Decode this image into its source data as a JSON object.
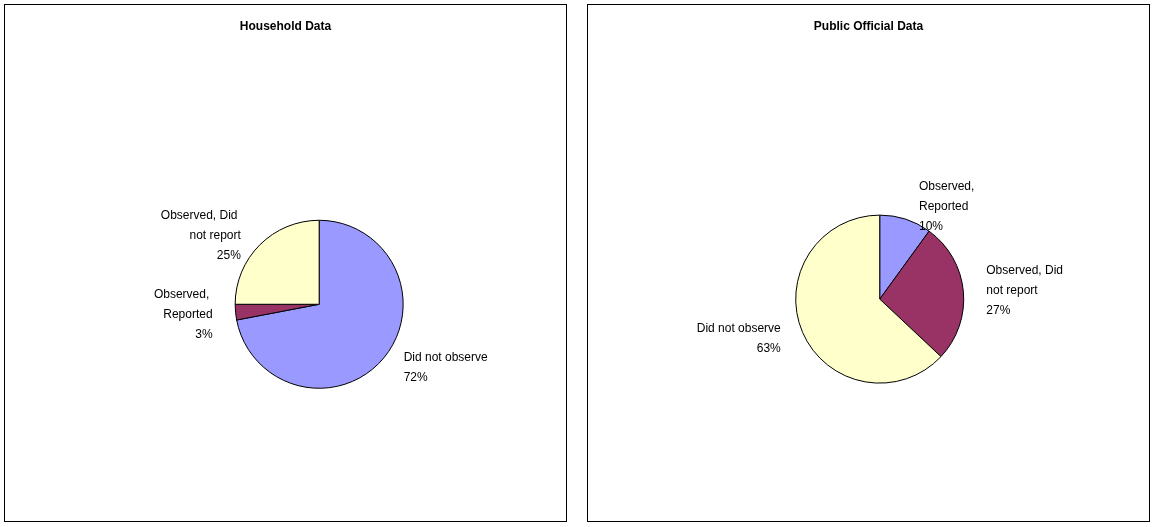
{
  "chart_data": [
    {
      "type": "pie",
      "title": "Household Data",
      "categories": [
        "Did not observe",
        "Observed, Reported",
        "Observed, Did not report"
      ],
      "values": [
        72,
        3,
        25
      ],
      "colors": [
        "#9999ff",
        "#993366",
        "#ffffcc"
      ],
      "value_labels": [
        "72%",
        "3%",
        "25%"
      ]
    },
    {
      "type": "pie",
      "title": "Public Official Data",
      "categories": [
        "Observed, Reported",
        "Observed, Did not report",
        "Did not observe"
      ],
      "values": [
        10,
        27,
        63
      ],
      "colors": [
        "#9999ff",
        "#993366",
        "#ffffcc"
      ],
      "value_labels": [
        "10%",
        "27%",
        "63%"
      ]
    }
  ]
}
